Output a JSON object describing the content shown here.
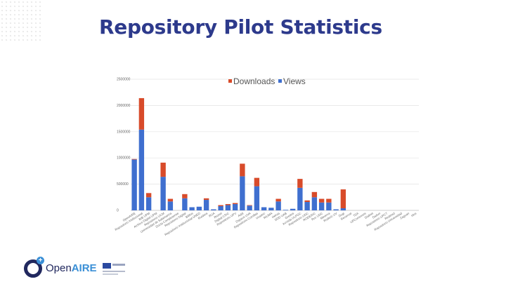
{
  "slide": {
    "title": "Repository Pilot Statistics"
  },
  "colors": {
    "downloads": "#d84b2a",
    "views": "#3f6fcf",
    "title": "#2d3a8c",
    "grid": "#e4e4e4"
  },
  "logos": {
    "openaire_open": "Open",
    "openaire_aire": "AIRE"
  },
  "chart_data": {
    "type": "bar",
    "stacked": true,
    "legend": {
      "position": "top",
      "entries": [
        "Downloads",
        "Views"
      ]
    },
    "ylim": [
      0,
      2500000
    ],
    "yticks": [
      0,
      500000,
      1000000,
      1500000,
      2000000,
      2500000
    ],
    "ytick_labels": [
      "0",
      "500000",
      "1000000",
      "1500000",
      "2000000",
      "2500000"
    ],
    "grid": true,
    "categories": [
      "OpenAIRE",
      "Repositorio Institucional",
      "BIB UPM",
      "Archivo Digital UPM",
      "Repositorio UCM",
      "Universidad de Salamanca",
      "Docta Complutense",
      "Repositorio Digital",
      "Biblos",
      "Repositorio Institucional UNED",
      "Ruidera",
      "RUA",
      "Riunet",
      "Digital CSIC",
      "Repositorio UPV",
      "Addi",
      "Dspace UVA",
      "Repositorio Comillas",
      "Uvadoc",
      "RIUMA",
      "Helvia",
      "DDD UAB",
      "Gredos",
      "Acceda ULPGC",
      "Repositorio UDC",
      "RODERIC",
      "Ruc UDC",
      "Minerva",
      "Roderic UV",
      "Dugi",
      "Recercat",
      "TDX",
      "UPCommons",
      "Dialnet",
      "Dadun",
      "Repositorio UPCT",
      "Redined",
      "Repositorio Universidad",
      "Zaguan",
      "Idus"
    ],
    "series": [
      {
        "name": "Views",
        "values": [
          970000,
          1540000,
          250000,
          0,
          640000,
          170000,
          0,
          230000,
          60000,
          70000,
          200000,
          20000,
          80000,
          100000,
          120000,
          650000,
          90000,
          460000,
          60000,
          50000,
          170000,
          10000,
          30000,
          430000,
          160000,
          250000,
          150000,
          150000,
          20000,
          40000,
          0,
          0,
          0,
          0,
          0,
          0,
          0,
          0,
          0,
          0
        ]
      },
      {
        "name": "Downloads",
        "values": [
          10000,
          600000,
          80000,
          0,
          270000,
          50000,
          0,
          80000,
          0,
          0,
          30000,
          0,
          20000,
          20000,
          20000,
          240000,
          10000,
          160000,
          0,
          0,
          50000,
          0,
          0,
          170000,
          30000,
          100000,
          70000,
          70000,
          0,
          360000,
          0,
          0,
          0,
          0,
          0,
          0,
          0,
          0,
          0,
          0
        ]
      }
    ]
  }
}
